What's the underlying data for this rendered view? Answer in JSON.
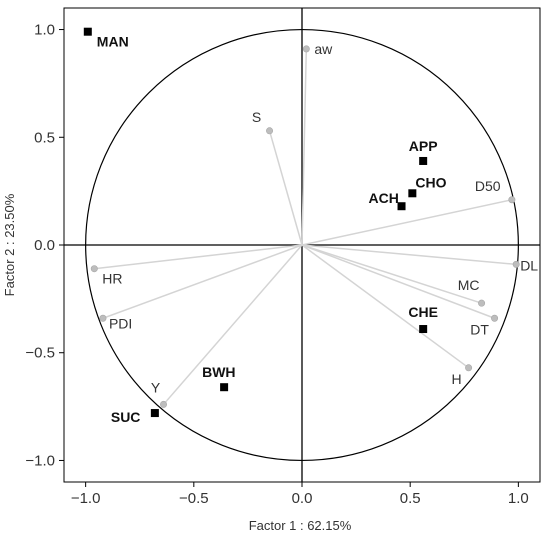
{
  "chart_data": {
    "type": "scatter",
    "subtype": "pca-correlation-circle",
    "xlabel": "Factor 1 : 62.15%",
    "ylabel": "Factor 2 : 23.50%",
    "xlim": [
      -1.1,
      1.1
    ],
    "ylim": [
      -1.1,
      1.1
    ],
    "xticks": [
      -1.0,
      -0.5,
      0.0,
      0.5,
      1.0
    ],
    "yticks": [
      -1.0,
      -0.5,
      0.0,
      0.5,
      1.0
    ],
    "xtick_labels": [
      "−1.0",
      "−0.5",
      "0.0",
      "0.5",
      "1.0"
    ],
    "ytick_labels": [
      "−1.0",
      "−0.5",
      "0.0",
      "0.5",
      "1.0"
    ],
    "grid": false,
    "unit_circle": true,
    "colors": {
      "variable_point": "#bdbdbd",
      "variable_line": "#d4d4d4",
      "supplementary_point": "#000000",
      "axes": "#000000"
    },
    "active_variables": [
      {
        "label": "aw",
        "x": 0.02,
        "y": 0.91
      },
      {
        "label": "S",
        "x": -0.15,
        "y": 0.53
      },
      {
        "label": "D50",
        "x": 0.97,
        "y": 0.21
      },
      {
        "label": "DL",
        "x": 0.99,
        "y": -0.09
      },
      {
        "label": "MC",
        "x": 0.83,
        "y": -0.27
      },
      {
        "label": "DT",
        "x": 0.89,
        "y": -0.34
      },
      {
        "label": "H",
        "x": 0.77,
        "y": -0.57
      },
      {
        "label": "HR",
        "x": -0.96,
        "y": -0.11
      },
      {
        "label": "PDI",
        "x": -0.92,
        "y": -0.34
      },
      {
        "label": "Y",
        "x": -0.64,
        "y": -0.74
      }
    ],
    "supplementary_variables": [
      {
        "label": "MAN",
        "x": -0.99,
        "y": 0.99
      },
      {
        "label": "APP",
        "x": 0.56,
        "y": 0.39
      },
      {
        "label": "CHO",
        "x": 0.51,
        "y": 0.24
      },
      {
        "label": "ACH",
        "x": 0.46,
        "y": 0.18
      },
      {
        "label": "CHE",
        "x": 0.56,
        "y": -0.39
      },
      {
        "label": "BWH",
        "x": -0.36,
        "y": -0.66
      },
      {
        "label": "SUC",
        "x": -0.68,
        "y": -0.78
      }
    ]
  }
}
